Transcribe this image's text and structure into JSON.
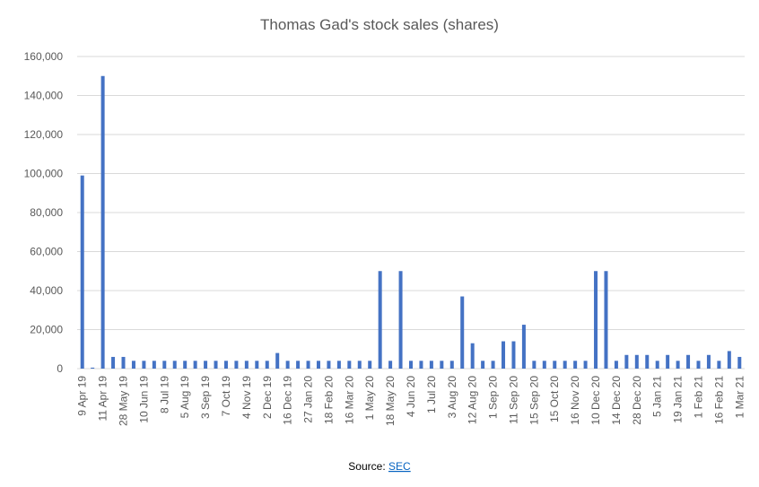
{
  "chart_data": {
    "type": "bar",
    "title": "Thomas Gad's stock sales (shares)",
    "categories": [
      "9 Apr 19",
      null,
      "11 Apr 19",
      null,
      "28 May 19",
      null,
      "10 Jun 19",
      null,
      "8 Jul 19",
      null,
      "5 Aug 19",
      null,
      "3 Sep 19",
      null,
      "7 Oct 19",
      null,
      "4 Nov 19",
      null,
      "2 Dec 19",
      null,
      "16 Dec 19",
      null,
      "27 Jan 20",
      null,
      "18 Feb 20",
      null,
      "16 Mar 20",
      null,
      "1 May 20",
      null,
      "18 May 20",
      null,
      "4 Jun 20",
      null,
      "1 Jul 20",
      null,
      "3 Aug 20",
      null,
      "12 Aug 20",
      null,
      "1 Sep 20",
      null,
      "11 Sep 20",
      null,
      "15 Sep 20",
      null,
      "15 Oct 20",
      null,
      "16 Nov 20",
      null,
      "10 Dec 20",
      null,
      "14 Dec 20",
      null,
      "28 Dec 20",
      null,
      "5 Jan 21",
      null,
      "19 Jan 21",
      null,
      "1 Feb 21",
      null,
      "16 Feb 21",
      null,
      "1 Mar 21"
    ],
    "values": [
      99000,
      500,
      150000,
      6000,
      6000,
      4000,
      4000,
      4000,
      4000,
      4000,
      4000,
      4000,
      4000,
      4000,
      4000,
      4000,
      4000,
      4000,
      4000,
      8000,
      4000,
      4000,
      4000,
      4000,
      4000,
      4000,
      4000,
      4000,
      4000,
      50000,
      4000,
      50000,
      4000,
      4000,
      4000,
      4000,
      4000,
      37000,
      13000,
      4000,
      4000,
      14000,
      14000,
      22500,
      4000,
      4000,
      4000,
      4000,
      4000,
      4000,
      50000,
      50000,
      4000,
      7000,
      7000,
      7000,
      4000,
      7000,
      4000,
      7000,
      4000,
      7000,
      4000,
      9000,
      6000
    ],
    "color": "#4472c4",
    "ylim": [
      0,
      160000
    ],
    "yticks": [
      0,
      {
        "value": 20000,
        "label": "20,000"
      },
      {
        "value": 40000,
        "label": "40,000"
      },
      {
        "value": 60000,
        "label": "60,000"
      },
      {
        "value": 80000,
        "label": "80,000"
      },
      {
        "value": 100000,
        "label": "100,000"
      },
      {
        "value": 120000,
        "label": "120,000"
      },
      {
        "value": 140000,
        "label": "140,000"
      },
      {
        "value": 160000,
        "label": "160,000"
      }
    ],
    "grid": true,
    "source_label": "Source:",
    "source_link": "SEC"
  }
}
